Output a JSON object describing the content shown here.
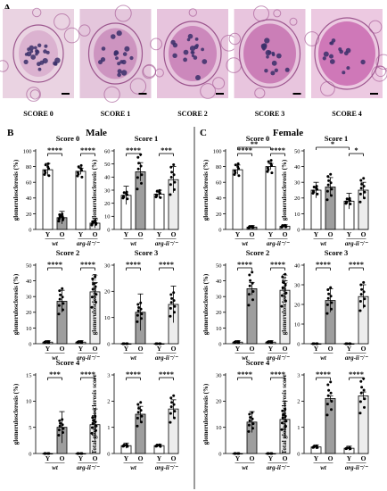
{
  "panel_labels": {
    "a": "A",
    "b": "B",
    "c": "C"
  },
  "score_images": [
    {
      "caption": "SCORE 0",
      "bg": "#ead3e2",
      "accent": "#b14f9a"
    },
    {
      "caption": "SCORE 1",
      "bg": "#e4c6dc",
      "accent": "#a63f8f"
    },
    {
      "caption": "SCORE 2",
      "bg": "#e7c4dd",
      "accent": "#b04a98"
    },
    {
      "caption": "SCORE 3",
      "bg": "#e8c5de",
      "accent": "#b8519f"
    },
    {
      "caption": "SCORE 4",
      "bg": "#ecc9e1",
      "accent": "#c45aa8"
    }
  ],
  "sections": [
    {
      "title": "Male"
    },
    {
      "title": "Female"
    }
  ],
  "colors": {
    "wt_fill": "#9e9e9e",
    "arg_fill": "#ededed",
    "young_fill": "#ffffff",
    "outline": "#000000"
  },
  "chart_data": [
    {
      "type": "bar",
      "section": "Male",
      "title": "Score 0",
      "ylabel": "glomerulosclerosis (%)",
      "ylim": [
        0,
        100
      ],
      "yticks": [
        0,
        20,
        40,
        60,
        80,
        100
      ],
      "categories": [
        "Y",
        "O",
        "Y",
        "O"
      ],
      "groups": [
        "wt",
        "arg-ii⁻/⁻"
      ],
      "values": [
        76,
        15,
        74,
        8
      ],
      "errors": [
        8,
        8,
        4,
        6
      ],
      "significance": [
        {
          "from": 0,
          "to": 1,
          "label": "****"
        },
        {
          "from": 2,
          "to": 3,
          "label": "****"
        }
      ]
    },
    {
      "type": "bar",
      "section": "Male",
      "title": "Score 1",
      "ylabel": "glomerulosclerosis (%)",
      "ylim": [
        0,
        60
      ],
      "yticks": [
        0,
        10,
        20,
        30,
        40,
        50,
        60
      ],
      "categories": [
        "Y",
        "O",
        "Y",
        "O"
      ],
      "groups": [
        "wt",
        "arg-ii⁻/⁻"
      ],
      "values": [
        26,
        44,
        27,
        38
      ],
      "errors": [
        7,
        7,
        3,
        10
      ],
      "significance": [
        {
          "from": 0,
          "to": 1,
          "label": "****"
        },
        {
          "from": 2,
          "to": 3,
          "label": "***"
        }
      ]
    },
    {
      "type": "bar",
      "section": "Male",
      "title": "Score 2",
      "ylabel": "glomerulosclerosis (%)",
      "ylim": [
        0,
        50
      ],
      "yticks": [
        0,
        10,
        20,
        30,
        40,
        50
      ],
      "categories": [
        "Y",
        "O",
        "Y",
        "O"
      ],
      "groups": [
        "wt",
        "arg-ii⁻/⁻"
      ],
      "values": [
        1,
        27,
        1,
        33
      ],
      "errors": [
        1,
        7,
        1,
        6
      ],
      "significance": [
        {
          "from": 0,
          "to": 1,
          "label": "****"
        },
        {
          "from": 2,
          "to": 3,
          "label": "****"
        }
      ]
    },
    {
      "type": "bar",
      "section": "Male",
      "title": "Score 3",
      "ylabel": "glomerulosclerosis (%)",
      "ylim": [
        0,
        30
      ],
      "yticks": [
        0,
        10,
        20,
        30
      ],
      "categories": [
        "Y",
        "O",
        "Y",
        "O"
      ],
      "groups": [
        "wt",
        "arg-ii⁻/⁻"
      ],
      "values": [
        0,
        12,
        0,
        15
      ],
      "errors": [
        0,
        7,
        0,
        7
      ],
      "significance": [
        {
          "from": 0,
          "to": 1,
          "label": "****"
        },
        {
          "from": 2,
          "to": 3,
          "label": "****"
        }
      ]
    },
    {
      "type": "bar",
      "section": "Male",
      "title": "Score 4",
      "ylabel": "glomerulosclerosis (%)",
      "ylim": [
        0,
        15
      ],
      "yticks": [
        0,
        5,
        10,
        15
      ],
      "categories": [
        "Y",
        "O",
        "Y",
        "O"
      ],
      "groups": [
        "wt",
        "arg-ii⁻/⁻"
      ],
      "values": [
        0,
        5,
        0,
        5.5
      ],
      "errors": [
        0,
        3,
        0,
        3
      ],
      "significance": [
        {
          "from": 0,
          "to": 1,
          "label": "***"
        },
        {
          "from": 2,
          "to": 3,
          "label": "****"
        }
      ]
    },
    {
      "type": "bar",
      "section": "Male",
      "title": "",
      "ylabel": "Total glomerulosclerosis score",
      "ylim": [
        0,
        3
      ],
      "yticks": [
        0,
        1,
        2,
        3
      ],
      "categories": [
        "Y",
        "O",
        "Y",
        "O"
      ],
      "groups": [
        "wt",
        "arg-ii⁻/⁻"
      ],
      "values": [
        0.3,
        1.5,
        0.3,
        1.7
      ],
      "errors": [
        0.1,
        0.3,
        0.05,
        0.35
      ],
      "significance": [
        {
          "from": 0,
          "to": 1,
          "label": "****"
        },
        {
          "from": 2,
          "to": 3,
          "label": "****"
        }
      ]
    },
    {
      "type": "bar",
      "section": "Female",
      "title": "Score 0",
      "ylabel": "glomerulosclerosis (%)",
      "ylim": [
        0,
        100
      ],
      "yticks": [
        0,
        20,
        40,
        60,
        80,
        100
      ],
      "categories": [
        "Y",
        "O",
        "Y",
        "O"
      ],
      "groups": [
        "wt",
        "arg-ii⁻/⁻"
      ],
      "values": [
        76,
        3,
        80,
        4
      ],
      "errors": [
        6,
        2,
        4,
        2
      ],
      "significance": [
        {
          "from": 0,
          "to": 1,
          "label": "****"
        },
        {
          "from": 2,
          "to": 3,
          "label": "****"
        },
        {
          "from": 0,
          "to": 2,
          "label": "**"
        }
      ]
    },
    {
      "type": "bar",
      "section": "Female",
      "title": "Score 1",
      "ylabel": "glomerulosclerosis (%)",
      "ylim": [
        0,
        50
      ],
      "yticks": [
        0,
        10,
        20,
        30,
        40,
        50
      ],
      "categories": [
        "Y",
        "O",
        "Y",
        "O"
      ],
      "groups": [
        "wt",
        "arg-ii⁻/⁻"
      ],
      "values": [
        25,
        27,
        18,
        25
      ],
      "errors": [
        5,
        6,
        5,
        5
      ],
      "significance": [
        {
          "from": 0,
          "to": 2,
          "label": "*"
        },
        {
          "from": 2,
          "to": 3,
          "label": "*"
        }
      ]
    },
    {
      "type": "bar",
      "section": "Female",
      "title": "Score 2",
      "ylabel": "glomerulosclerosis (%)",
      "ylim": [
        0,
        50
      ],
      "yticks": [
        0,
        10,
        20,
        30,
        40,
        50
      ],
      "categories": [
        "Y",
        "O",
        "Y",
        "O"
      ],
      "groups": [
        "wt",
        "arg-ii⁻/⁻"
      ],
      "values": [
        1,
        35,
        1,
        34
      ],
      "errors": [
        1,
        4,
        1,
        6
      ],
      "significance": [
        {
          "from": 0,
          "to": 1,
          "label": "****"
        },
        {
          "from": 2,
          "to": 3,
          "label": "****"
        }
      ]
    },
    {
      "type": "bar",
      "section": "Female",
      "title": "Score 3",
      "ylabel": "glomerulosclerosis (%)",
      "ylim": [
        0,
        40
      ],
      "yticks": [
        0,
        10,
        20,
        30,
        40
      ],
      "categories": [
        "Y",
        "O",
        "Y",
        "O"
      ],
      "groups": [
        "wt",
        "arg-ii⁻/⁻"
      ],
      "values": [
        0,
        22,
        0,
        24
      ],
      "errors": [
        0,
        6,
        0,
        6
      ],
      "significance": [
        {
          "from": 0,
          "to": 1,
          "label": "****"
        },
        {
          "from": 2,
          "to": 3,
          "label": "****"
        }
      ]
    },
    {
      "type": "bar",
      "section": "Female",
      "title": "Score 4",
      "ylabel": "glomerulosclerosis (%)",
      "ylim": [
        0,
        30
      ],
      "yticks": [
        0,
        10,
        20,
        30
      ],
      "categories": [
        "Y",
        "O",
        "Y",
        "O"
      ],
      "groups": [
        "wt",
        "arg-ii⁻/⁻"
      ],
      "values": [
        0,
        12,
        0,
        13
      ],
      "errors": [
        0,
        4,
        0,
        7
      ],
      "significance": [
        {
          "from": 0,
          "to": 1,
          "label": "****"
        },
        {
          "from": 2,
          "to": 3,
          "label": "****"
        }
      ]
    },
    {
      "type": "bar",
      "section": "Female",
      "title": "",
      "ylabel": "Total glomerulosclerosis score",
      "ylim": [
        0,
        3
      ],
      "yticks": [
        0,
        1,
        2,
        3
      ],
      "categories": [
        "Y",
        "O",
        "Y",
        "O"
      ],
      "groups": [
        "wt",
        "arg-ii⁻/⁻"
      ],
      "values": [
        0.25,
        2.1,
        0.2,
        2.2
      ],
      "errors": [
        0.08,
        0.1,
        0.08,
        0.15
      ],
      "significance": [
        {
          "from": 0,
          "to": 1,
          "label": "****"
        },
        {
          "from": 2,
          "to": 3,
          "label": "****"
        }
      ]
    }
  ]
}
